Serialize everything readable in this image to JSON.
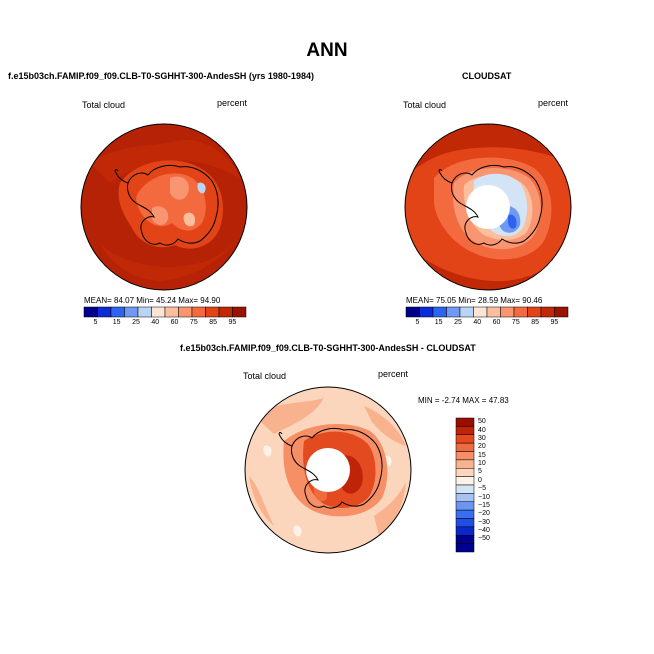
{
  "figure_title": "ANN",
  "colors": {
    "abs_scale": [
      "#00008b",
      "#0a2bd6",
      "#2e62f0",
      "#6f99f2",
      "#b9d4f4",
      "#fde4d4",
      "#fbbf9e",
      "#f99570",
      "#f36a3f",
      "#e24418",
      "#c12806",
      "#9a1200"
    ],
    "diff_scale": [
      "#000090",
      "#0a28c8",
      "#1f4ee6",
      "#3c6ff0",
      "#6a96f2",
      "#a6c3f4",
      "#d4e4f7",
      "#fdf2e8",
      "#fcd6bc",
      "#f9b28e",
      "#f68e66",
      "#f06a40",
      "#e44a20",
      "#c02408",
      "#9a0e00"
    ],
    "land_line": "#000000",
    "pole_mask": "#ffffff"
  },
  "panels": [
    {
      "title": "f.e15b03ch.FAMIP.f09_f09.CLB-T0-SGHHT-300-AndesSH (yrs 1980-1984)",
      "variable": "Total cloud",
      "units": "percent",
      "stats": "MEAN=  84.07   Min=  45.24   Max=  94.90"
    },
    {
      "title": "CLOUDSAT",
      "variable": "Total cloud",
      "units": "percent",
      "stats": "MEAN=  75.05   Min=  28.59   Max=  90.46"
    },
    {
      "title": "f.e15b03ch.FAMIP.f09_f09.CLB-T0-SGHHT-300-AndesSH - CLOUDSAT",
      "variable": "Total cloud",
      "units": "percent",
      "stats": "MIN =  -2.74 MAX =  47.83"
    }
  ],
  "abs_colorbar_labels": [
    "5",
    "15",
    "25",
    "40",
    "60",
    "75",
    "85",
    "95"
  ],
  "diff_colorbar_labels": [
    "50",
    "40",
    "30",
    "20",
    "15",
    "10",
    "5",
    "0",
    "−5",
    "−10",
    "−15",
    "−20",
    "−30",
    "−40",
    "−50"
  ]
}
